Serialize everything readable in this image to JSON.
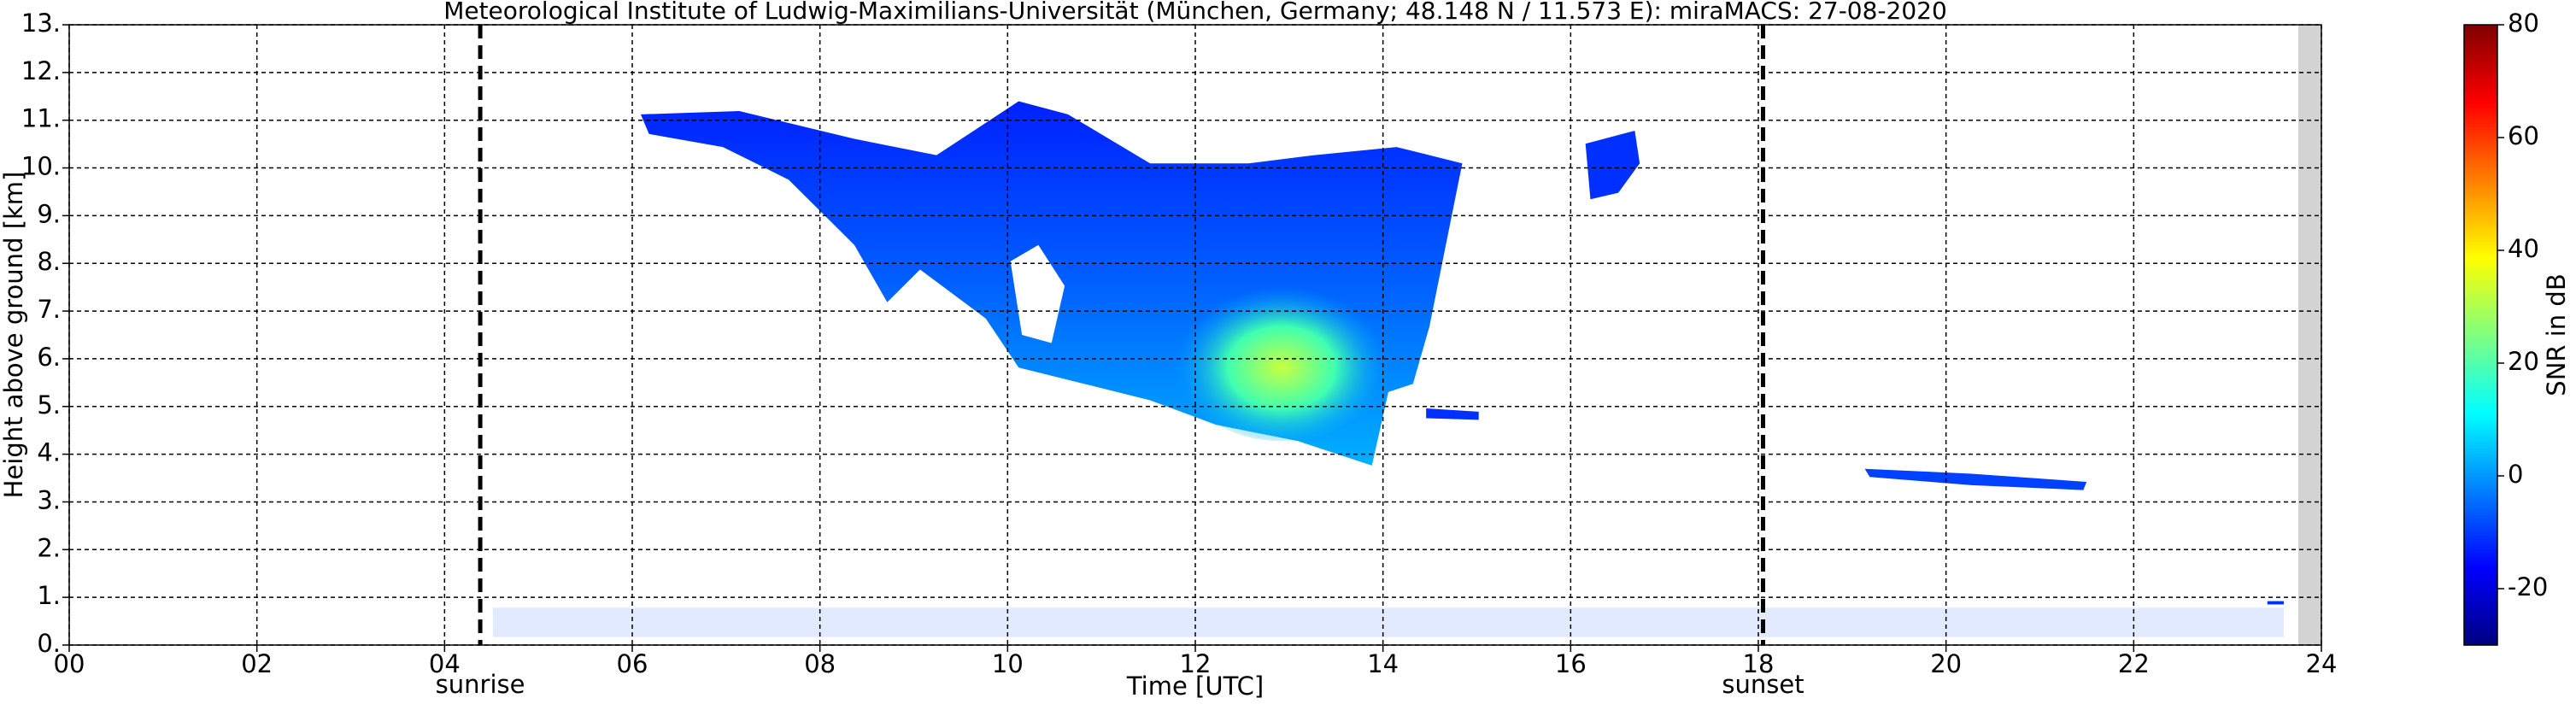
{
  "chart_data": {
    "type": "heatmap",
    "title": "Meteorological Institute of Ludwig-Maximilians-Universität (München, Germany; 48.148 N / 11.573 E):    miraMACS: 27-08-2020",
    "xlabel": "Time [UTC]",
    "ylabel": "Height above ground [km]",
    "xlim": [
      0,
      24
    ],
    "xticks": [
      {
        "value": 0,
        "label": "00"
      },
      {
        "value": 2,
        "label": "02"
      },
      {
        "value": 4,
        "label": "04"
      },
      {
        "value": 6,
        "label": "06"
      },
      {
        "value": 8,
        "label": "08"
      },
      {
        "value": 10,
        "label": "10"
      },
      {
        "value": 12,
        "label": "12"
      },
      {
        "value": 14,
        "label": "14"
      },
      {
        "value": 16,
        "label": "16"
      },
      {
        "value": 18,
        "label": "18"
      },
      {
        "value": 20,
        "label": "20"
      },
      {
        "value": 22,
        "label": "22"
      },
      24
    ],
    "ylim": [
      0,
      13
    ],
    "yticks": [
      {
        "value": 0,
        "label": "0."
      },
      {
        "value": 1,
        "label": "1."
      },
      {
        "value": 2,
        "label": "2."
      },
      {
        "value": 3,
        "label": "3."
      },
      {
        "value": 4,
        "label": "4."
      },
      {
        "value": 5,
        "label": "5."
      },
      {
        "value": 6,
        "label": "6."
      },
      {
        "value": 7,
        "label": "7."
      },
      {
        "value": 8,
        "label": "8."
      },
      {
        "value": 9,
        "label": "9."
      },
      {
        "value": 10,
        "label": "10."
      },
      {
        "value": 11,
        "label": "11."
      },
      {
        "value": 12,
        "label": "12."
      },
      {
        "value": 13,
        "label": "13."
      }
    ],
    "grid": true,
    "annotations": [
      {
        "text": "sunrise",
        "x": 4.38
      },
      {
        "text": "sunset",
        "x": 18.05
      }
    ],
    "colorbar": {
      "label": "SNR in dB",
      "lim": [
        -30,
        80
      ],
      "ticks": [
        -20,
        0,
        20,
        40,
        60,
        80
      ],
      "colormap": "jet"
    }
  }
}
